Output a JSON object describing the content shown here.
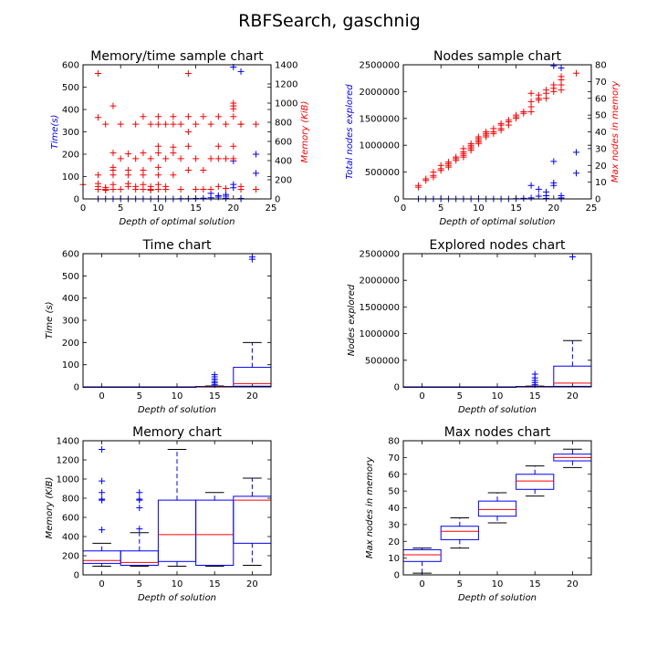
{
  "figure": {
    "title": "RBFSearch, gaschnig"
  },
  "colors": {
    "blue": "#0000ff",
    "red": "#ff0000",
    "axis": "#000000",
    "median": "#ff0000"
  },
  "chart_data": [
    {
      "id": "memtime",
      "type": "scatter",
      "title": "Memory/time sample chart",
      "xlabel": "Depth of optimal solution",
      "ylabel": "Time(s)",
      "y2label": "Memory (KiB)",
      "xlim": [
        0,
        25
      ],
      "ylim": [
        0,
        600
      ],
      "y2lim": [
        0,
        1400
      ],
      "xticks": [
        "0",
        "5",
        "10",
        "15",
        "20",
        "25"
      ],
      "yticks": [
        "0",
        "100",
        "200",
        "300",
        "400",
        "500",
        "600"
      ],
      "y2ticks": [
        "0",
        "200",
        "400",
        "600",
        "800",
        "1000",
        "1200",
        "1400"
      ],
      "series": [
        {
          "axis": "left",
          "color": "blue",
          "x": [
            2,
            3,
            4,
            5,
            6,
            7,
            8,
            9,
            10,
            11,
            12,
            13,
            14,
            15,
            16,
            17,
            17,
            18,
            18,
            19,
            19,
            19,
            20,
            20,
            20,
            20,
            21,
            21,
            21,
            23,
            23
          ],
          "y": [
            0,
            0,
            0,
            0,
            0,
            0,
            0,
            0,
            0,
            0,
            0,
            1,
            1,
            2,
            3,
            5,
            25,
            8,
            15,
            3,
            12,
            20,
            50,
            65,
            170,
            590,
            0,
            2,
            570,
            115,
            200
          ]
        },
        {
          "axis": "right",
          "color": "red",
          "x": [
            0,
            2,
            2,
            2,
            2,
            2,
            2,
            3,
            3,
            3,
            3,
            4,
            4,
            4,
            4,
            4,
            4,
            4,
            5,
            5,
            5,
            6,
            6,
            6,
            6,
            6,
            7,
            7,
            7,
            7,
            8,
            8,
            8,
            8,
            8,
            8,
            9,
            9,
            9,
            9,
            9,
            10,
            10,
            10,
            10,
            10,
            10,
            10,
            10,
            11,
            11,
            11,
            11,
            12,
            12,
            12,
            12,
            12,
            13,
            13,
            13,
            14,
            14,
            14,
            14,
            14,
            15,
            15,
            15,
            16,
            16,
            16,
            17,
            17,
            17,
            18,
            18,
            18,
            18,
            19,
            19,
            19,
            20,
            20,
            20,
            20,
            20,
            20,
            21,
            21,
            21,
            21,
            23,
            23
          ],
          "y": [
            150,
            1310,
            850,
            250,
            160,
            130,
            100,
            780,
            120,
            100,
            90,
            970,
            480,
            330,
            300,
            250,
            150,
            100,
            780,
            420,
            100,
            470,
            300,
            250,
            160,
            130,
            780,
            420,
            130,
            100,
            860,
            480,
            300,
            250,
            150,
            100,
            780,
            420,
            130,
            100,
            90,
            860,
            780,
            550,
            480,
            330,
            250,
            150,
            100,
            780,
            420,
            130,
            100,
            860,
            780,
            540,
            480,
            250,
            780,
            420,
            100,
            1310,
            860,
            700,
            550,
            300,
            780,
            420,
            100,
            860,
            300,
            100,
            780,
            420,
            100,
            860,
            550,
            420,
            130,
            780,
            420,
            110,
            1000,
            970,
            940,
            860,
            550,
            420,
            780,
            780,
            100,
            130,
            780,
            100
          ]
        }
      ]
    },
    {
      "id": "nodes",
      "type": "scatter",
      "title": "Nodes sample chart",
      "xlabel": "Depth of optimal solution",
      "ylabel": "Total nodes explored",
      "y2label": "Max nodes in memory",
      "xlim": [
        0,
        25
      ],
      "ylim": [
        0,
        2500000
      ],
      "y2lim": [
        0,
        80
      ],
      "xticks": [
        "0",
        "5",
        "10",
        "15",
        "20",
        "25"
      ],
      "yticks": [
        "0",
        "500000",
        "1000000",
        "1500000",
        "2000000",
        "2500000"
      ],
      "y2ticks": [
        "0",
        "10",
        "20",
        "30",
        "40",
        "50",
        "60",
        "70",
        "80"
      ],
      "series": [
        {
          "axis": "left",
          "color": "blue",
          "x": [
            2,
            3,
            4,
            5,
            6,
            7,
            8,
            9,
            10,
            11,
            12,
            13,
            14,
            15,
            16,
            17,
            17,
            18,
            18,
            19,
            19,
            19,
            20,
            20,
            20,
            20,
            21,
            21,
            21,
            21,
            23,
            23
          ],
          "y": [
            0,
            0,
            0,
            0,
            0,
            0,
            0,
            0,
            0,
            0,
            0,
            0,
            1000,
            5000,
            10000,
            20000,
            250000,
            50000,
            180000,
            10000,
            60000,
            130000,
            250000,
            300000,
            700000,
            2480000,
            5000,
            20000,
            60000,
            2440000,
            480000,
            870000
          ]
        },
        {
          "axis": "right",
          "color": "red",
          "x": [
            2,
            2,
            3,
            3,
            4,
            4,
            4,
            5,
            5,
            5,
            6,
            6,
            6,
            6,
            7,
            7,
            7,
            8,
            8,
            8,
            8,
            8,
            9,
            9,
            9,
            9,
            9,
            10,
            10,
            10,
            10,
            10,
            11,
            11,
            11,
            11,
            12,
            12,
            12,
            13,
            13,
            13,
            13,
            14,
            14,
            14,
            15,
            15,
            15,
            16,
            16,
            17,
            17,
            17,
            17,
            18,
            18,
            18,
            19,
            19,
            19,
            20,
            20,
            20,
            21,
            21,
            21,
            21,
            23
          ],
          "y": [
            7,
            8,
            11,
            12,
            13,
            14,
            16,
            17,
            18,
            20,
            19,
            20,
            21,
            22,
            23,
            24,
            25,
            25,
            26,
            27,
            28,
            30,
            29,
            30,
            31,
            32,
            33,
            33,
            34,
            35,
            36,
            37,
            37,
            38,
            39,
            40,
            39,
            40,
            42,
            41,
            42,
            44,
            45,
            44,
            46,
            47,
            48,
            49,
            50,
            51,
            52,
            52,
            55,
            58,
            63,
            59,
            60,
            62,
            60,
            63,
            65,
            64,
            66,
            68,
            65,
            68,
            71,
            73,
            75
          ]
        }
      ]
    },
    {
      "id": "time",
      "type": "box",
      "title": "Time chart",
      "xlabel": "Depth of solution",
      "ylabel": "Time (s)",
      "xlim": [
        -2.5,
        22.5
      ],
      "ylim": [
        0,
        600
      ],
      "xticks": [
        "0",
        "5",
        "10",
        "15",
        "20"
      ],
      "yticks": [
        "0",
        "100",
        "200",
        "300",
        "400",
        "500",
        "600"
      ],
      "boxes": [
        {
          "x": 0,
          "q1": 0,
          "median": 0,
          "q3": 0,
          "whislo": 0,
          "whishi": 0,
          "fliers": []
        },
        {
          "x": 5,
          "q1": 0,
          "median": 0,
          "q3": 0,
          "whislo": 0,
          "whishi": 0,
          "fliers": []
        },
        {
          "x": 10,
          "q1": 0,
          "median": 0,
          "q3": 0,
          "whislo": 0,
          "whishi": 0,
          "fliers": []
        },
        {
          "x": 15,
          "q1": 0.5,
          "median": 1,
          "q3": 2,
          "whislo": 0,
          "whishi": 4,
          "fliers": [
            10,
            18,
            25,
            35,
            45,
            55
          ]
        },
        {
          "x": 20,
          "q1": 3,
          "median": 15,
          "q3": 88,
          "whislo": 0,
          "whishi": 200,
          "fliers": [
            575,
            585
          ]
        }
      ]
    },
    {
      "id": "explored",
      "type": "box",
      "title": "Explored nodes chart",
      "xlabel": "Depth of solution",
      "ylabel": "Nodes explored",
      "xlim": [
        -2.5,
        22.5
      ],
      "ylim": [
        0,
        2500000
      ],
      "xticks": [
        "0",
        "5",
        "10",
        "15",
        "20"
      ],
      "yticks": [
        "0",
        "500000",
        "1000000",
        "1500000",
        "2000000",
        "2500000"
      ],
      "boxes": [
        {
          "x": 0,
          "q1": 0,
          "median": 0,
          "q3": 0,
          "whislo": 0,
          "whishi": 0,
          "fliers": []
        },
        {
          "x": 5,
          "q1": 0,
          "median": 0,
          "q3": 0,
          "whislo": 0,
          "whishi": 0,
          "fliers": []
        },
        {
          "x": 10,
          "q1": 0,
          "median": 0,
          "q3": 0,
          "whislo": 0,
          "whishi": 0,
          "fliers": []
        },
        {
          "x": 15,
          "q1": 1000,
          "median": 3000,
          "q3": 8000,
          "whislo": 0,
          "whishi": 15000,
          "fliers": [
            40000,
            80000,
            120000,
            170000,
            240000
          ]
        },
        {
          "x": 20,
          "q1": 10000,
          "median": 70000,
          "q3": 390000,
          "whislo": 0,
          "whishi": 870000,
          "fliers": [
            2440000
          ]
        }
      ]
    },
    {
      "id": "memory",
      "type": "box",
      "title": "Memory chart",
      "xlabel": "Depth of solution",
      "ylabel": "Memory (KiB)",
      "xlim": [
        -2.5,
        22.5
      ],
      "ylim": [
        0,
        1400
      ],
      "xticks": [
        "0",
        "5",
        "10",
        "15",
        "20"
      ],
      "yticks": [
        "0",
        "200",
        "400",
        "600",
        "800",
        "1000",
        "1200",
        "1400"
      ],
      "boxes": [
        {
          "x": 0,
          "q1": 120,
          "median": 150,
          "q3": 250,
          "whislo": 90,
          "whishi": 330,
          "fliers": [
            470,
            780,
            790,
            860,
            980,
            1310
          ]
        },
        {
          "x": 5,
          "q1": 100,
          "median": 130,
          "q3": 250,
          "whislo": 90,
          "whishi": 440,
          "fliers": [
            480,
            700,
            780,
            790,
            860
          ]
        },
        {
          "x": 10,
          "q1": 140,
          "median": 420,
          "q3": 780,
          "whislo": 90,
          "whishi": 1310,
          "fliers": []
        },
        {
          "x": 15,
          "q1": 100,
          "median": 420,
          "q3": 780,
          "whislo": 90,
          "whishi": 860,
          "fliers": []
        },
        {
          "x": 20,
          "q1": 330,
          "median": 780,
          "q3": 820,
          "whislo": 100,
          "whishi": 1010,
          "fliers": []
        }
      ]
    },
    {
      "id": "maxnodes",
      "type": "box",
      "title": "Max nodes chart",
      "xlabel": "Depth of solution",
      "ylabel": "Max nodes in memory",
      "xlim": [
        -2.5,
        22.5
      ],
      "ylim": [
        0,
        80
      ],
      "xticks": [
        "0",
        "5",
        "10",
        "15",
        "20"
      ],
      "yticks": [
        "0",
        "10",
        "20",
        "30",
        "40",
        "50",
        "60",
        "70",
        "80"
      ],
      "boxes": [
        {
          "x": 0,
          "q1": 8,
          "median": 12,
          "q3": 15,
          "whislo": 1,
          "whishi": 16,
          "fliers": []
        },
        {
          "x": 5,
          "q1": 21,
          "median": 26,
          "q3": 29,
          "whislo": 16,
          "whishi": 34,
          "fliers": []
        },
        {
          "x": 10,
          "q1": 35,
          "median": 39,
          "q3": 44,
          "whislo": 31,
          "whishi": 49,
          "fliers": []
        },
        {
          "x": 15,
          "q1": 51,
          "median": 56,
          "q3": 60,
          "whislo": 47,
          "whishi": 65,
          "fliers": []
        },
        {
          "x": 20,
          "q1": 68,
          "median": 70,
          "q3": 72,
          "whislo": 64,
          "whishi": 75,
          "fliers": []
        }
      ]
    }
  ]
}
